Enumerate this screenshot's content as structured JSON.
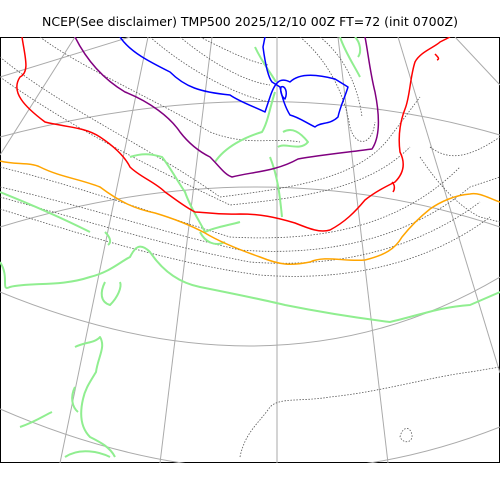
{
  "title": "NCEP(See disclaimer) TMP500 2025/12/10 00Z FT=72 (init 0700Z)",
  "map_elements": {
    "coastline_color": "#90EE90",
    "graticule_color": "#aaaaaa",
    "isotherm_color": "#555555",
    "contours": [
      {
        "color": "#0000ff"
      },
      {
        "color": "#800080"
      },
      {
        "color": "#ff0000"
      },
      {
        "color": "#ffa500"
      }
    ]
  }
}
